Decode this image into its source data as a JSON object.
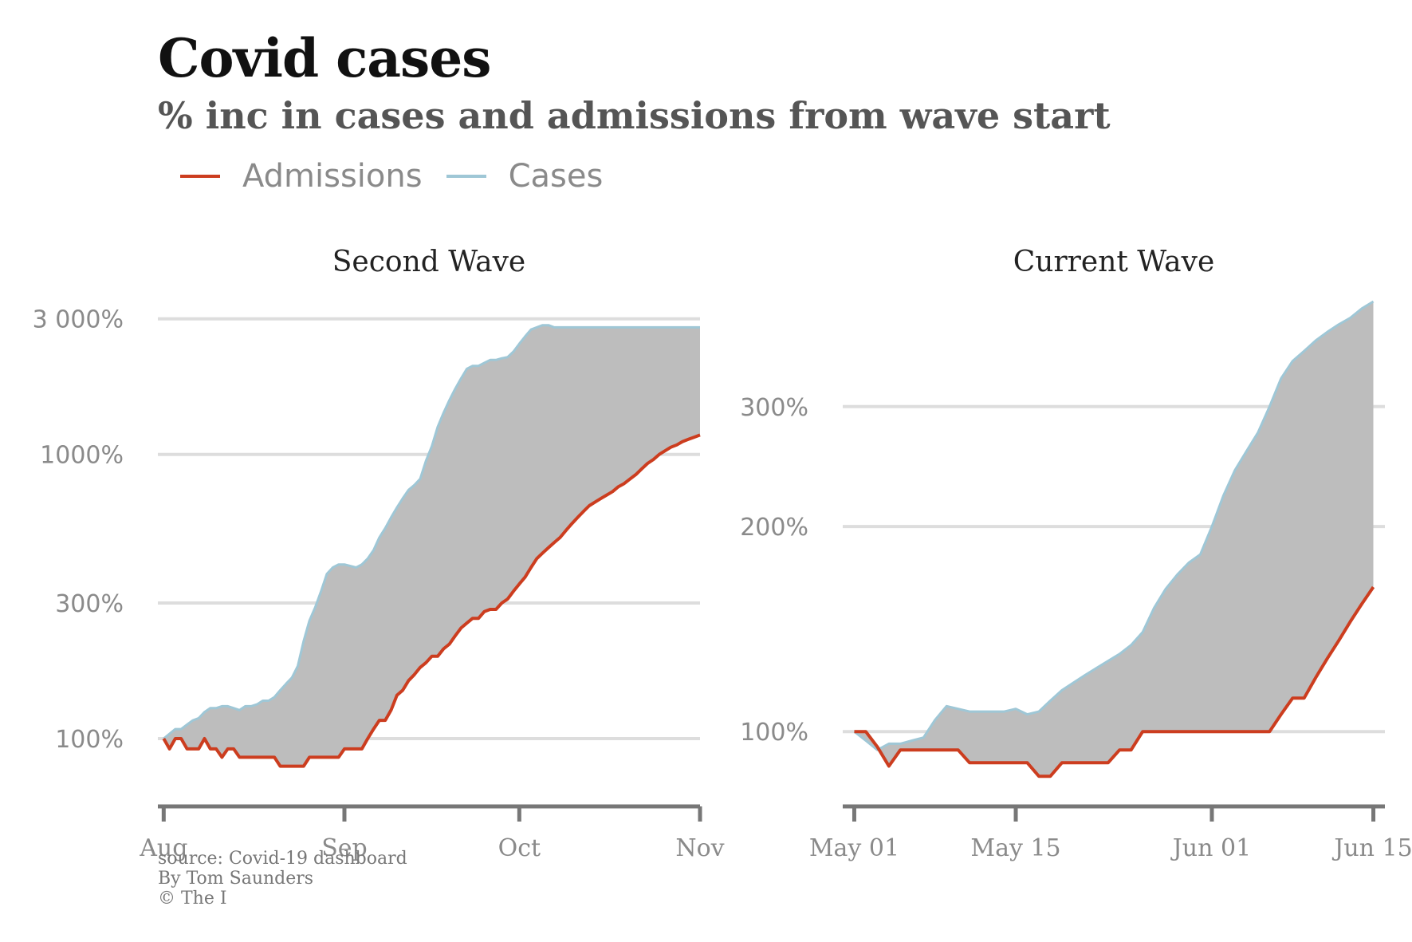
{
  "title": "Covid cases",
  "subtitle": "% inc in cases and admissions from wave start",
  "legend": [
    {
      "label": "Admissions",
      "color": "#cc3d1f"
    },
    {
      "label": "Cases",
      "color": "#9fc7d6"
    }
  ],
  "source": {
    "line1": "source: Covid-19 dashboard",
    "line2": "By Tom Saunders",
    "line3": "© The I"
  },
  "colors": {
    "admissions": "#cc3d1f",
    "cases": "#9fc7d6",
    "fill": "#bdbdbd",
    "grid": "#dddddd",
    "axis": "#777777",
    "tick_text": "#8a8a8a"
  },
  "chart_data": [
    {
      "type": "area",
      "title": "Second Wave",
      "scale": "log",
      "ylim": [
        62,
        3300
      ],
      "yticks": [
        100,
        300,
        1000,
        3000
      ],
      "ytick_labels": [
        "100%",
        "300%",
        "1000%",
        "3 000%"
      ],
      "xlim": [
        -1,
        92
      ],
      "xticks": [
        0,
        31,
        61,
        92
      ],
      "xtick_labels": [
        "Aug",
        "Sep",
        "Oct",
        "Nov"
      ],
      "series": [
        {
          "name": "Admissions",
          "x": [
            0,
            1,
            2,
            3,
            4,
            5,
            6,
            7,
            8,
            9,
            10,
            11,
            12,
            13,
            14,
            15,
            16,
            17,
            18,
            19,
            20,
            21,
            22,
            23,
            24,
            25,
            26,
            27,
            28,
            29,
            30,
            31,
            32,
            33,
            34,
            35,
            36,
            37,
            38,
            39,
            40,
            41,
            42,
            43,
            44,
            45,
            46,
            47,
            48,
            49,
            50,
            51,
            52,
            53,
            54,
            55,
            56,
            57,
            58,
            59,
            60,
            61,
            62,
            63,
            64,
            65,
            66,
            67,
            68,
            69,
            70,
            71,
            72,
            73,
            74,
            75,
            76,
            77,
            78,
            79,
            80,
            81,
            82,
            83,
            84,
            85,
            86,
            87,
            88,
            89,
            90,
            91,
            92
          ],
          "y": [
            100,
            92,
            100,
            100,
            92,
            92,
            92,
            100,
            92,
            92,
            86,
            92,
            92,
            86,
            86,
            86,
            86,
            86,
            86,
            86,
            80,
            80,
            80,
            80,
            80,
            86,
            86,
            86,
            86,
            86,
            86,
            92,
            92,
            92,
            92,
            100,
            108,
            116,
            116,
            126,
            142,
            148,
            160,
            168,
            178,
            185,
            195,
            195,
            207,
            215,
            230,
            245,
            255,
            265,
            265,
            280,
            285,
            285,
            300,
            310,
            330,
            350,
            370,
            400,
            430,
            450,
            470,
            490,
            510,
            540,
            570,
            600,
            630,
            660,
            680,
            700,
            720,
            740,
            770,
            790,
            820,
            850,
            890,
            930,
            960,
            1000,
            1030,
            1060,
            1080,
            1110,
            1130,
            1150,
            1170
          ]
        },
        {
          "name": "Cases",
          "x": [
            0,
            1,
            2,
            3,
            4,
            5,
            6,
            7,
            8,
            9,
            10,
            11,
            12,
            13,
            14,
            15,
            16,
            17,
            18,
            19,
            20,
            21,
            22,
            23,
            24,
            25,
            26,
            27,
            28,
            29,
            30,
            31,
            32,
            33,
            34,
            35,
            36,
            37,
            38,
            39,
            40,
            41,
            42,
            43,
            44,
            45,
            46,
            47,
            48,
            49,
            50,
            51,
            52,
            53,
            54,
            55,
            56,
            57,
            58,
            59,
            60,
            61,
            62,
            63,
            64,
            65,
            66,
            67,
            68,
            69,
            70,
            71,
            72,
            73,
            74,
            75,
            76,
            77,
            78,
            79,
            80,
            81,
            82,
            83,
            84,
            85,
            86,
            87,
            88,
            89,
            90,
            91,
            92
          ],
          "y": [
            100,
            104,
            108,
            108,
            112,
            116,
            118,
            124,
            128,
            128,
            130,
            130,
            128,
            126,
            130,
            130,
            132,
            136,
            136,
            140,
            148,
            156,
            164,
            180,
            220,
            260,
            290,
            330,
            380,
            400,
            410,
            410,
            405,
            400,
            410,
            430,
            460,
            510,
            550,
            600,
            650,
            700,
            750,
            780,
            820,
            950,
            1070,
            1250,
            1400,
            1550,
            1700,
            1850,
            2000,
            2050,
            2050,
            2100,
            2150,
            2150,
            2180,
            2200,
            2300,
            2450,
            2600,
            2750,
            2800,
            2850,
            2850,
            2800,
            2800,
            2800,
            2800,
            2800,
            2800,
            2800,
            2800,
            2800,
            2800,
            2800,
            2800,
            2800,
            2800,
            2800,
            2800,
            2800,
            2800,
            2800,
            2800,
            2800,
            2800,
            2800,
            2800,
            2800,
            2800
          ]
        }
      ]
    },
    {
      "type": "area",
      "title": "Current Wave",
      "scale": "log",
      "ylim": [
        80,
        420
      ],
      "yticks": [
        100,
        200,
        300
      ],
      "ytick_labels": [
        "100%",
        "200%",
        "300%"
      ],
      "xlim": [
        -1,
        46
      ],
      "xticks": [
        0,
        14,
        31,
        45
      ],
      "xtick_labels": [
        "May 01",
        "May 15",
        "Jun 01",
        "Jun 15"
      ],
      "series": [
        {
          "name": "Admissions",
          "x": [
            0,
            1,
            2,
            3,
            4,
            5,
            6,
            7,
            8,
            9,
            10,
            11,
            12,
            13,
            14,
            15,
            16,
            17,
            18,
            19,
            20,
            21,
            22,
            23,
            24,
            25,
            26,
            27,
            28,
            29,
            30,
            31,
            32,
            33,
            34,
            35,
            36,
            37,
            38,
            39,
            40,
            41,
            42,
            43,
            44,
            45
          ],
          "y": [
            100,
            100,
            95,
            89,
            94,
            94,
            94,
            94,
            94,
            94,
            90,
            90,
            90,
            90,
            90,
            90,
            86,
            86,
            90,
            90,
            90,
            90,
            90,
            94,
            94,
            100,
            100,
            100,
            100,
            100,
            100,
            100,
            100,
            100,
            100,
            100,
            100,
            106,
            112,
            112,
            120,
            128,
            136,
            145,
            154,
            163
          ]
        },
        {
          "name": "Cases",
          "x": [
            0,
            1,
            2,
            3,
            4,
            5,
            6,
            7,
            8,
            9,
            10,
            11,
            12,
            13,
            14,
            15,
            16,
            17,
            18,
            19,
            20,
            21,
            22,
            23,
            24,
            25,
            26,
            27,
            28,
            29,
            30,
            31,
            32,
            33,
            34,
            35,
            36,
            37,
            38,
            39,
            40,
            41,
            42,
            43,
            44,
            45
          ],
          "y": [
            100,
            97,
            94,
            96,
            96,
            97,
            98,
            104,
            109,
            108,
            107,
            107,
            107,
            107,
            108,
            106,
            107,
            111,
            115,
            118,
            121,
            124,
            127,
            130,
            134,
            140,
            152,
            162,
            170,
            177,
            182,
            200,
            222,
            242,
            258,
            275,
            300,
            330,
            350,
            362,
            375,
            386,
            396,
            405,
            418,
            428
          ]
        }
      ]
    }
  ]
}
